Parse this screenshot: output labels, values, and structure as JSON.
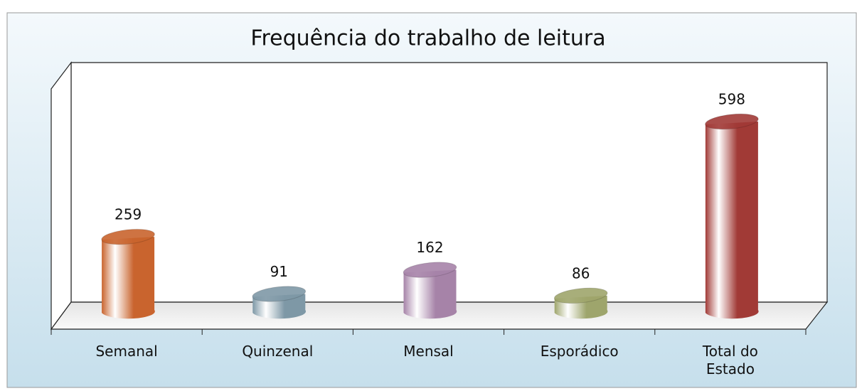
{
  "chart_data": {
    "type": "bar",
    "title": "Frequência do trabalho de leitura",
    "categories": [
      "Semanal",
      "Quinzenal",
      "Mensal",
      "Esporádico",
      "Total do Estado"
    ],
    "values": [
      259,
      91,
      162,
      86,
      598
    ],
    "colors": [
      "#c9642e",
      "#7e98a6",
      "#a683a8",
      "#9ea56c",
      "#a13a36"
    ]
  }
}
